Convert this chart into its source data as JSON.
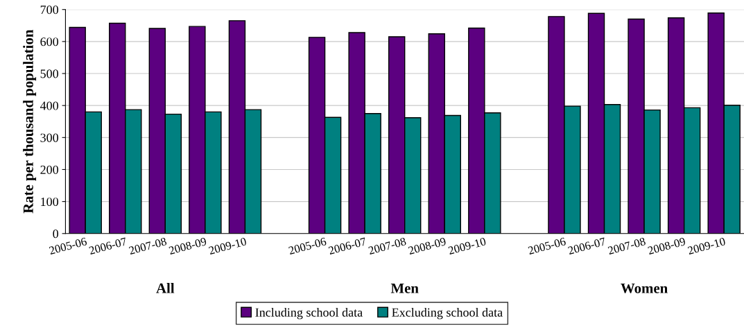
{
  "chart_data": {
    "type": "bar",
    "ylabel": "Rate per thousand population",
    "categories": [
      "2005-06",
      "2006-07",
      "2007-08",
      "2008-09",
      "2009-10",
      null,
      "2005-06",
      "2006-07",
      "2007-08",
      "2008-09",
      "2009-10",
      null,
      "2005-06",
      "2006-07",
      "2007-08",
      "2008-09",
      "2009-10"
    ],
    "series": [
      {
        "name": "Including school data",
        "color": "#5c0080",
        "values": [
          644,
          657,
          641,
          647,
          665,
          null,
          613,
          628,
          615,
          624,
          642,
          null,
          678,
          688,
          670,
          674,
          689
        ]
      },
      {
        "name": "Excluding school data",
        "color": "#008080",
        "values": [
          380,
          387,
          373,
          380,
          387,
          null,
          363,
          375,
          362,
          369,
          377,
          null,
          398,
          403,
          386,
          393,
          401
        ]
      }
    ],
    "annotations": [
      "All",
      "Men",
      "Women"
    ],
    "ylim": [
      0,
      700
    ],
    "yticks": [
      0,
      100,
      200,
      300,
      400,
      500,
      600,
      700
    ],
    "grid": "y",
    "legend": "bottom"
  }
}
